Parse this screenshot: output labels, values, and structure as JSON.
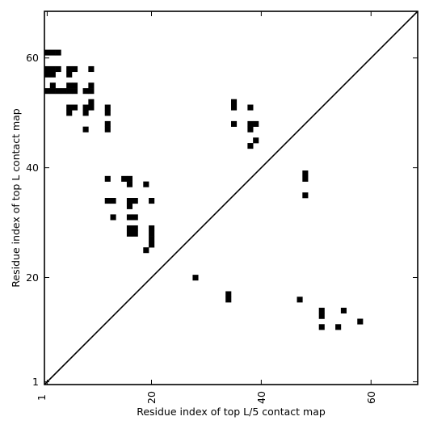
{
  "chart_data": {
    "type": "heatmap",
    "xlabel": "Residue index of top L/5 contact map",
    "ylabel": "Residue index of top L contact map",
    "xlim": [
      0.5,
      68.5
    ],
    "ylim": [
      0.5,
      68.5
    ],
    "x_ticks": [
      1,
      20,
      40,
      60
    ],
    "y_ticks": [
      1,
      20,
      40,
      60
    ],
    "x_tick_labels": [
      "1",
      "20",
      "40",
      "60"
    ],
    "y_tick_labels": [
      "1",
      "20",
      "40",
      "60"
    ],
    "diagonal": true,
    "grid": false,
    "cell_color": "#000000",
    "upper_contacts": [
      [
        1,
        61
      ],
      [
        2,
        61
      ],
      [
        3,
        61
      ],
      [
        1,
        58
      ],
      [
        2,
        58
      ],
      [
        3,
        58
      ],
      [
        5,
        58
      ],
      [
        6,
        58
      ],
      [
        9,
        58
      ],
      [
        1,
        57
      ],
      [
        2,
        57
      ],
      [
        5,
        57
      ],
      [
        2,
        55
      ],
      [
        5,
        55
      ],
      [
        6,
        55
      ],
      [
        9,
        55
      ],
      [
        1,
        54
      ],
      [
        2,
        54
      ],
      [
        3,
        54
      ],
      [
        4,
        54
      ],
      [
        5,
        54
      ],
      [
        6,
        54
      ],
      [
        8,
        54
      ],
      [
        9,
        54
      ],
      [
        9,
        52
      ],
      [
        9,
        51
      ],
      [
        5,
        51
      ],
      [
        6,
        51
      ],
      [
        8,
        51
      ],
      [
        12,
        51
      ],
      [
        5,
        50
      ],
      [
        8,
        50
      ],
      [
        12,
        50
      ],
      [
        12,
        48
      ],
      [
        8,
        47
      ],
      [
        12,
        47
      ],
      [
        12,
        38
      ],
      [
        15,
        38
      ],
      [
        16,
        38
      ],
      [
        16,
        37
      ],
      [
        19,
        37
      ],
      [
        12,
        34
      ],
      [
        13,
        34
      ],
      [
        16,
        34
      ],
      [
        17,
        34
      ],
      [
        20,
        34
      ],
      [
        16,
        33
      ],
      [
        13,
        31
      ],
      [
        16,
        31
      ],
      [
        17,
        31
      ],
      [
        16,
        29
      ],
      [
        17,
        29
      ],
      [
        20,
        29
      ],
      [
        16,
        28
      ],
      [
        17,
        28
      ],
      [
        20,
        28
      ],
      [
        20,
        27
      ],
      [
        20,
        26
      ],
      [
        19,
        25
      ],
      [
        35,
        52
      ],
      [
        35,
        51
      ],
      [
        38,
        51
      ],
      [
        35,
        48
      ],
      [
        38,
        48
      ],
      [
        39,
        48
      ],
      [
        38,
        47
      ],
      [
        39,
        45
      ],
      [
        38,
        44
      ],
      [
        48,
        39
      ],
      [
        48,
        38
      ],
      [
        48,
        35
      ]
    ],
    "lower_contacts": [
      [
        28,
        20
      ],
      [
        34,
        17
      ],
      [
        34,
        16
      ],
      [
        47,
        16
      ],
      [
        51,
        14
      ],
      [
        55,
        14
      ],
      [
        51,
        13
      ],
      [
        58,
        12
      ],
      [
        51,
        11
      ],
      [
        54,
        11
      ]
    ]
  }
}
